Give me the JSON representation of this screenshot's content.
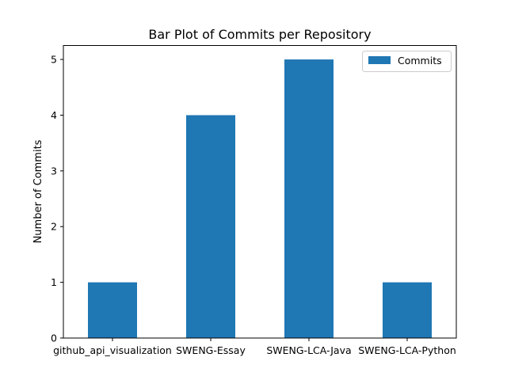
{
  "chart_data": {
    "type": "bar",
    "title": "Bar Plot of Commits per Repository",
    "xlabel": "",
    "ylabel": "Number of Commits",
    "categories": [
      "github_api_visualization",
      "SWENG-Essay",
      "SWENG-LCA-Java",
      "SWENG-LCA-Python"
    ],
    "series": [
      {
        "name": "Commits",
        "values": [
          1,
          4,
          5,
          1
        ],
        "color": "#1f77b4"
      }
    ],
    "ylim": [
      0,
      5.25
    ],
    "yticks": [
      0,
      1,
      2,
      3,
      4,
      5
    ],
    "grid": false,
    "legend": "top-right"
  }
}
